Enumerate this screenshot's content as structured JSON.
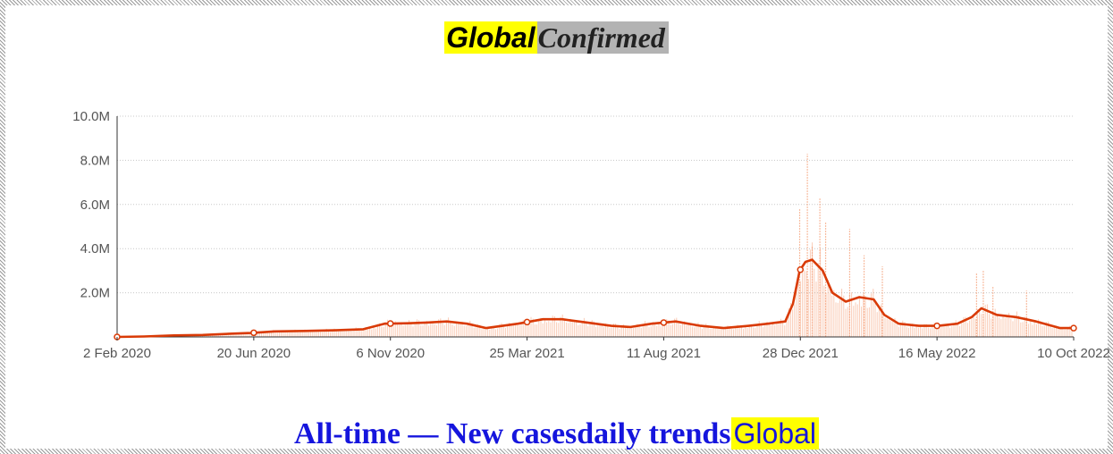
{
  "header": {
    "title_part1": "Global",
    "title_part2": "Confirmed"
  },
  "footer": {
    "text_part1": "All-time — New casesdaily trends",
    "text_part2": "Global"
  },
  "colors": {
    "line": "#d93a06",
    "bars": "#f5a37c",
    "title_highlight": "#ffff00",
    "title_box": "#b3b3b3",
    "footer_text": "#1515dd"
  },
  "chart_data": {
    "type": "line",
    "title": "GlobalConfirmed",
    "xlabel": "",
    "ylabel": "",
    "ylim": [
      0,
      10000000
    ],
    "grid": true,
    "y_ticks": [
      {
        "value": 2000000,
        "label": "2.0M"
      },
      {
        "value": 4000000,
        "label": "4.0M"
      },
      {
        "value": 6000000,
        "label": "6.0M"
      },
      {
        "value": 8000000,
        "label": "8.0M"
      },
      {
        "value": 10000000,
        "label": "10.0M"
      }
    ],
    "x_ticks": [
      "2 Feb 2020",
      "20 Jun 2020",
      "6 Nov 2020",
      "25 Mar 2021",
      "11 Aug 2021",
      "28 Dec 2021",
      "16 May 2022",
      "10 Oct 2022"
    ],
    "x_range": [
      "2020-02-02",
      "2022-10-24"
    ],
    "series": [
      {
        "kind": "line",
        "x": [
          "2020-02-02",
          "2020-03-01",
          "2020-04-01",
          "2020-05-01",
          "2020-06-01",
          "2020-06-20",
          "2020-07-15",
          "2020-08-15",
          "2020-09-15",
          "2020-10-15",
          "2020-11-06",
          "2020-12-01",
          "2020-12-20",
          "2021-01-10",
          "2021-01-31",
          "2021-02-20",
          "2021-03-25",
          "2021-04-20",
          "2021-05-10",
          "2021-06-05",
          "2021-06-30",
          "2021-07-20",
          "2021-08-11",
          "2021-09-05",
          "2021-10-01",
          "2021-10-25",
          "2021-11-20",
          "2021-12-10",
          "2021-12-28",
          "2022-01-05",
          "2022-01-12",
          "2022-01-18",
          "2022-01-25",
          "2022-02-05",
          "2022-02-15",
          "2022-03-01",
          "2022-03-15",
          "2022-03-30",
          "2022-04-10",
          "2022-04-25",
          "2022-05-16",
          "2022-06-05",
          "2022-06-25",
          "2022-07-10",
          "2022-07-20",
          "2022-08-05",
          "2022-08-25",
          "2022-09-15",
          "2022-10-10",
          "2022-10-24"
        ],
        "values": [
          0,
          20000,
          70000,
          90000,
          150000,
          180000,
          250000,
          270000,
          300000,
          350000,
          600000,
          620000,
          650000,
          700000,
          600000,
          400000,
          600000,
          800000,
          800000,
          650000,
          500000,
          450000,
          600000,
          700000,
          500000,
          400000,
          500000,
          600000,
          700000,
          1500000,
          3000000,
          3400000,
          3500000,
          3000000,
          2000000,
          1600000,
          1800000,
          1700000,
          1000000,
          600000,
          500000,
          500000,
          600000,
          900000,
          1300000,
          1000000,
          900000,
          700000,
          400000,
          400000
        ]
      },
      {
        "kind": "daily-bars",
        "x": [
          "2022-01-12",
          "2022-01-20",
          "2022-01-25",
          "2022-02-02",
          "2022-02-08",
          "2022-03-05",
          "2022-03-20",
          "2022-04-08",
          "2022-07-15",
          "2022-07-22",
          "2022-08-01",
          "2022-09-05"
        ],
        "values": [
          5800000,
          8300000,
          4100000,
          6300000,
          5200000,
          4900000,
          3700000,
          3200000,
          2900000,
          3000000,
          2300000,
          2100000
        ]
      }
    ]
  }
}
